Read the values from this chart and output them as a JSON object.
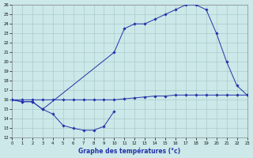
{
  "xlabel": "Graphe des températures (°c)",
  "bg_color": "#cce8e8",
  "line_color": "#2233aa",
  "grid_color": "#aacccc",
  "xmin": 0,
  "xmax": 23,
  "ymin": 12,
  "ymax": 26,
  "lineA_x": [
    0,
    1,
    2,
    3,
    4,
    5,
    6,
    7,
    8,
    9,
    10,
    11,
    12,
    13,
    14,
    15,
    16,
    17,
    18,
    19,
    20,
    21,
    22,
    23
  ],
  "lineA_y": [
    16,
    16,
    16,
    16,
    16,
    16,
    16,
    16,
    16,
    16,
    16,
    16.1,
    16.2,
    16.3,
    16.4,
    16.4,
    16.5,
    16.5,
    16.5,
    16.5,
    16.5,
    16.5,
    16.5,
    16.5
  ],
  "lineB_x": [
    0,
    1,
    2,
    3,
    4,
    5,
    6,
    7,
    8,
    9,
    10
  ],
  "lineB_y": [
    16,
    15.8,
    15.8,
    15.0,
    14.5,
    13.3,
    13.0,
    12.8,
    12.8,
    13.2,
    14.8
  ],
  "lineC_x": [
    0,
    1,
    2,
    3,
    10,
    11,
    12,
    13,
    14,
    15,
    16,
    17,
    18,
    19,
    20,
    21,
    22,
    23
  ],
  "lineC_y": [
    16,
    15.8,
    15.8,
    15.0,
    21.0,
    23.5,
    24.0,
    24.0,
    24.5,
    25.0,
    25.5,
    26.0,
    26.0,
    25.5,
    23.0,
    20.0,
    17.5,
    16.5
  ]
}
